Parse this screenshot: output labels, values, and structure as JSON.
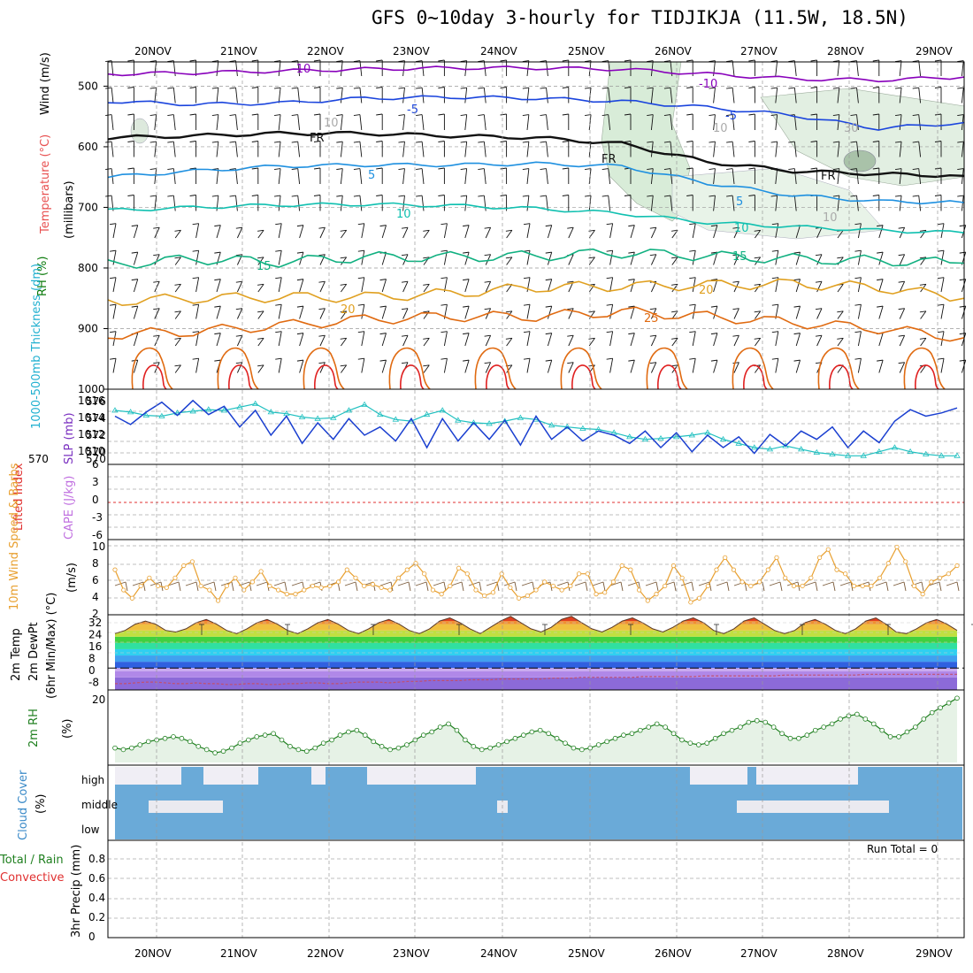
{
  "title": "GFS 0~10day 3-hourly for TIDJIKJA (11.5W, 18.5N)",
  "run_total": "Run Total = 0",
  "colors": {
    "temp_cold": "#8800bb",
    "temp_blue": "#1a44dd",
    "temp_light": "#1e90e0",
    "temp_teal": "#10c0b0",
    "temp_green": "#10b080",
    "temp_orange": "#e0a020",
    "temp_dark_orange": "#e06a10",
    "temp_red": "#e02020",
    "slp": "#1a3fd0",
    "thickness": "#20c0c0",
    "wind10m": "#e8a030",
    "rh2m": "#208020",
    "cloud": "#6aaad8",
    "lifted": "#e03030"
  },
  "chart_data": [
    {
      "type": "line",
      "panel": "upper-air",
      "xlabel_ticks": [
        "20NOV",
        "21NOV",
        "22NOV",
        "23NOV",
        "24NOV",
        "25NOV",
        "26NOV",
        "27NOV",
        "28NOV",
        "29NOV"
      ],
      "ylabels": [
        "Wind (m/s)",
        "Temperature (°C)",
        "RH (%)",
        "(millibars)"
      ],
      "yticks": [
        500,
        600,
        700,
        800,
        900,
        1000
      ],
      "ylim": [
        460,
        1000
      ],
      "contour_labels": [
        "-10",
        "-10",
        "-5",
        "-5",
        "FR",
        "FR",
        "FR",
        "5",
        "5",
        "10",
        "10",
        "15",
        "15",
        "20",
        "20",
        "25",
        "10",
        "10",
        "30",
        "10"
      ],
      "series": [
        {
          "name": "-10",
          "values": [
            480,
            478,
            475,
            472,
            470,
            470,
            472,
            480,
            488,
            490,
            485
          ]
        },
        {
          "name": "-5",
          "values": [
            525,
            530,
            528,
            520,
            518,
            520,
            525,
            535,
            548,
            570,
            560
          ]
        },
        {
          "name": "FR",
          "values": [
            585,
            582,
            578,
            578,
            582,
            585,
            595,
            625,
            640,
            645,
            648
          ]
        },
        {
          "name": "5",
          "values": [
            650,
            640,
            632,
            630,
            630,
            628,
            632,
            660,
            680,
            690,
            692
          ]
        },
        {
          "name": "10",
          "values": [
            705,
            700,
            696,
            695,
            697,
            702,
            710,
            725,
            732,
            738,
            742
          ]
        },
        {
          "name": "15",
          "values": [
            795,
            785,
            790,
            782,
            782,
            780,
            775,
            780,
            785,
            788,
            792
          ]
        },
        {
          "name": "20",
          "values": [
            855,
            850,
            848,
            848,
            842,
            832,
            830,
            828,
            826,
            832,
            850
          ]
        },
        {
          "name": "25",
          "values": [
            910,
            905,
            895,
            885,
            880,
            880,
            872,
            880,
            890,
            900,
            915
          ]
        }
      ]
    },
    {
      "type": "line",
      "panel": "slp-thickness",
      "ylabels": [
        "1000-500mb Thickness (dm)",
        "SLP (mb)"
      ],
      "yticks_left": [
        "576",
        "574",
        "572",
        "570"
      ],
      "yticks_right": [
        "1016",
        "1014",
        "1012",
        "1010"
      ],
      "series": [
        {
          "name": "SLP",
          "values": [
            1014.8,
            1013.8,
            1015.3,
            1016.5,
            1014.9,
            1016.7,
            1015.0,
            1016.0,
            1013.5,
            1015.5,
            1012.5,
            1014.8,
            1011.5,
            1014.0,
            1012.0,
            1014.5,
            1012.5,
            1013.5,
            1011.8,
            1014.5,
            1011.0,
            1014.5,
            1011.8,
            1014.0,
            1012.0,
            1014.3,
            1011.3,
            1014.8,
            1012.0,
            1013.5,
            1011.8,
            1013.0,
            1012.5,
            1011.5,
            1013.0,
            1011.0,
            1012.8,
            1010.5,
            1012.5,
            1011.0,
            1012.3,
            1010.3,
            1012.6,
            1011.2,
            1013.0,
            1012.0,
            1013.5,
            1011.0,
            1013.0,
            1011.6,
            1014.2,
            1015.6,
            1014.8,
            1015.2,
            1015.8
          ]
        },
        {
          "name": "Thickness",
          "values": [
            575.5,
            575.3,
            574.9,
            574.8,
            575.2,
            575.4,
            575.6,
            575.5,
            575.9,
            576.3,
            575.3,
            575.1,
            574.7,
            574.5,
            574.6,
            575.5,
            576.2,
            575.0,
            574.4,
            574.2,
            575.0,
            575.5,
            574.3,
            574.0,
            573.9,
            574.2,
            574.6,
            574.4,
            573.7,
            573.5,
            573.3,
            573.2,
            572.8,
            572.3,
            572.0,
            572.1,
            572.3,
            572.5,
            572.8,
            572.0,
            571.5,
            571.0,
            570.8,
            571.2,
            570.8,
            570.4,
            570.2,
            570.0,
            570.0,
            570.5,
            571.0,
            570.5,
            570.2,
            570.0,
            570.0
          ]
        }
      ]
    },
    {
      "type": "line",
      "panel": "lifted-cape",
      "ylabels": [
        "Lifted Index",
        "CAPE (J/kg)"
      ],
      "yticks": [
        "6",
        "3",
        "0",
        "-3",
        "-6"
      ],
      "ylim": [
        -6,
        6
      ],
      "series": [
        {
          "name": "Lifted Index",
          "values": [
            0
          ]
        }
      ]
    },
    {
      "type": "line",
      "panel": "wind-10m",
      "ylabels": [
        "10m Wind Speed & Barbs",
        "(m/s)"
      ],
      "yticks": [
        "10",
        "8",
        "6",
        "4",
        "2"
      ],
      "ylim": [
        2,
        10.5
      ],
      "series": [
        {
          "name": "10m Wind",
          "values": [
            7,
            4.5,
            3.5,
            5,
            6,
            5,
            4.8,
            6,
            7.5,
            8,
            5,
            4.5,
            3.2,
            5,
            6,
            4.5,
            5.5,
            6.8,
            5,
            4.5,
            4,
            4,
            4.5,
            5,
            4.8,
            5,
            5.5,
            7,
            6,
            5,
            5.2,
            4.8,
            4.5,
            6,
            7,
            7.8,
            6.5,
            4.5,
            4,
            5,
            7.2,
            6.5,
            4.5,
            3.8,
            4.2,
            6.5,
            4.8,
            3.5,
            3.8,
            4.5,
            5.5,
            5,
            4.5,
            5,
            6.5,
            6.5,
            4,
            4.2,
            5.5,
            7.5,
            7,
            4.5,
            3.2,
            4,
            5,
            7.5,
            6,
            3,
            3.5,
            5,
            7,
            8.5,
            7,
            5.5,
            5,
            5.5,
            7,
            8.5,
            6,
            5,
            5,
            6,
            8.5,
            9.5,
            7,
            6.5,
            5,
            5,
            5,
            6,
            7.8,
            9.8,
            8,
            5,
            4,
            5.5,
            6,
            6.5,
            7.5
          ]
        }
      ]
    },
    {
      "type": "area",
      "panel": "temp-2m",
      "ylabels": [
        "2m Temp",
        "2m DewPt",
        "(6hr Min/Max) (°C)"
      ],
      "yticks": [
        "32",
        "24",
        "16",
        "8",
        "0",
        "-8"
      ],
      "ylim": [
        -14,
        34
      ],
      "series": [
        {
          "name": "Temp",
          "values": [
            22,
            24,
            28,
            30,
            28,
            24,
            23,
            25,
            29,
            31,
            28,
            24,
            22,
            25,
            29,
            31,
            28,
            24,
            22,
            25,
            29,
            31,
            28,
            24,
            22,
            25,
            29,
            31,
            28,
            24,
            22,
            25,
            30,
            32,
            29,
            25,
            22,
            26,
            30,
            33,
            29,
            25,
            23,
            26,
            31,
            33,
            29,
            25,
            23,
            26,
            30,
            32,
            29,
            25,
            23,
            26,
            30,
            32,
            29,
            24,
            22,
            25,
            30,
            32,
            28,
            24,
            22,
            24,
            29,
            31,
            28,
            24,
            22,
            25,
            30,
            32,
            28,
            23,
            22,
            25,
            29,
            31,
            28,
            24
          ]
        },
        {
          "name": "DewPt",
          "values": [
            -10,
            -10,
            -9.5,
            -9,
            -9,
            -9.5,
            -10,
            -10,
            -9.5,
            -10,
            -10,
            -10.5,
            -10.5,
            -10,
            -10,
            -10.5,
            -10.5,
            -10,
            -10,
            -9.5,
            -9.5,
            -10,
            -10,
            -9.5,
            -9,
            -9,
            -9,
            -9.5,
            -9,
            -8.5,
            -8.5,
            -8,
            -8,
            -8,
            -8,
            -7.5,
            -7.5,
            -7.5,
            -7,
            -7,
            -7,
            -7,
            -7,
            -6.5,
            -6.5,
            -6.5,
            -6,
            -6,
            -6,
            -6,
            -6,
            -6,
            -5.5,
            -5.5,
            -5.5,
            -5.5,
            -5.5,
            -5.5,
            -5,
            -5,
            -5,
            -5,
            -5,
            -5,
            -5,
            -5,
            -4.5,
            -4.5,
            -4.5,
            -4.5,
            -4.5,
            -4.5,
            -4.5,
            -4.5,
            -4,
            -4,
            -4,
            -4,
            -4,
            -4,
            -4,
            -4,
            -4,
            -4
          ]
        }
      ]
    },
    {
      "type": "area",
      "panel": "rh-2m",
      "ylabels": [
        "2m RH",
        "(%)"
      ],
      "yticks": [
        "20"
      ],
      "ylim": [
        0,
        22
      ],
      "series": [
        {
          "name": "RH",
          "values": [
            4.5,
            4,
            4.5,
            5.5,
            6.5,
            7,
            7.5,
            8,
            7.5,
            6.5,
            5,
            4,
            3,
            3.5,
            4.5,
            6,
            7,
            8,
            8.5,
            9,
            7,
            5,
            4,
            3.5,
            4.5,
            6,
            7,
            8.5,
            9.5,
            10,
            8.5,
            6.5,
            5,
            4,
            4.5,
            5.5,
            7,
            8.5,
            9.5,
            11,
            12,
            10,
            7,
            5,
            4,
            4.5,
            5.5,
            6.5,
            7.5,
            8.5,
            9.5,
            10,
            9,
            7.5,
            6,
            4.5,
            4,
            4.5,
            5.5,
            6.5,
            7.5,
            8.5,
            9,
            10,
            11,
            12,
            11,
            9,
            7,
            6,
            5.5,
            6,
            7.5,
            9,
            10,
            11,
            12.5,
            13,
            12.5,
            11,
            9,
            7.5,
            7.5,
            8.5,
            10,
            11,
            12,
            13.5,
            14.5,
            15,
            13.5,
            12,
            10,
            8,
            8,
            9.5,
            11,
            13.5,
            15.5,
            17,
            18.5,
            20
          ]
        }
      ]
    },
    {
      "type": "heatmap",
      "panel": "cloud-cover",
      "ylabels": [
        "Cloud Cover",
        "(%)"
      ],
      "levels": [
        "high",
        "middle",
        "low"
      ]
    },
    {
      "type": "bar",
      "panel": "precip",
      "ylabels": [
        "Total / Rain",
        "Convective",
        "3hr Precip (mm)"
      ],
      "yticks": [
        "0.8",
        "0.6",
        "0.4",
        "0.2",
        "0"
      ],
      "ylim": [
        0,
        1
      ],
      "series": [
        {
          "name": "3hr Precip",
          "values": [
            0
          ]
        }
      ]
    }
  ]
}
